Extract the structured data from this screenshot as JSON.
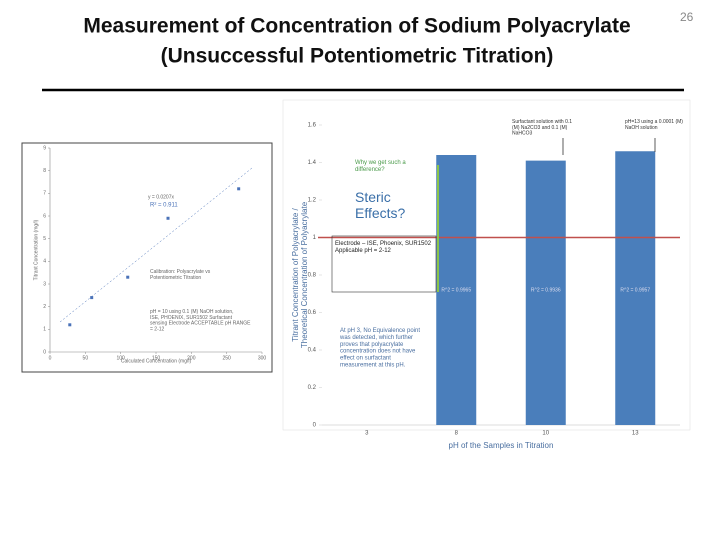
{
  "title": "Measurement of Concentration of Sodium Polyacrylate",
  "subtitle": "(Unsuccessful Potentiometric Titration)",
  "slide_number": "26",
  "left_chart": {
    "type": "scatter",
    "legend_title": "Calibration: Polyacrylate vs Potentiometric Titration",
    "equation": "y = 0.0207x",
    "r_squared": "R² = 0.911",
    "note": "pH = 10 using 0.1 (M) NaOH solution, ISE, PHOENIX, SUR1502 Surfactant sensing Electrode ACCEPTABLE pH RANGE = 2-12",
    "x_label": "Calculated Concentration (mg/l)",
    "y_label": "Titrant Concentration (mg/l)",
    "x": [
      28,
      59,
      110,
      167,
      267
    ],
    "values": [
      1.2,
      2.4,
      3.3,
      5.9,
      7.2
    ],
    "xlim": [
      0,
      300
    ],
    "xticks": [
      0,
      50,
      100,
      150,
      200,
      250,
      300
    ],
    "ylim": [
      0,
      9
    ],
    "yticks": [
      0,
      1,
      2,
      3,
      4,
      5,
      6,
      7,
      8,
      9
    ],
    "color": "#4a72b8"
  },
  "right_chart": {
    "type": "bar",
    "categories": [
      "3",
      "8",
      "10",
      "13"
    ],
    "values": [
      null,
      1.44,
      1.41,
      1.46
    ],
    "value_labels": [
      null,
      "R^2 = 0.9965",
      "R^2 = 0.9936",
      "R^2 = 0.9957"
    ],
    "color": "#4a7ebb",
    "ylim": [
      0,
      1.6
    ],
    "yticks": [
      0,
      0.2,
      0.4,
      0.6,
      0.8,
      1,
      1.2,
      1.4,
      1.6
    ],
    "reference_line": 1,
    "reference_color": "#c0504d",
    "x_label": "pH of the Samples in Titration",
    "y_label": "Titrant Concentration of Polyacrylate / Theoretical Concentration of Polyacrylate",
    "annotations": [
      "Why we get such a difference?",
      "Steric Effects?",
      "Electrode – ISE, Phoenix, SUR1502 Applicable pH = 2-12",
      "At pH 3, No Equivalence point was detected, which further proves that polyacrylate concentration does not have effect on surfactant measurement at this pH.",
      "Surfactant solution with 0.1 (M) Na2CO3 and 0.1 (M) NaHCO3",
      "pH=13 using a 0.0001 (M) NaOH solution"
    ]
  }
}
